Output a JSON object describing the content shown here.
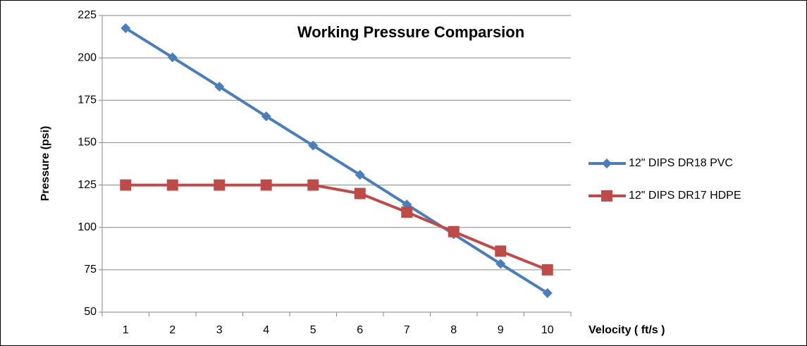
{
  "chart_data": {
    "type": "line",
    "title": "Working Pressure Comparsion",
    "x_label": "Velocity ( ft/s )",
    "y_label": "Pressure (psi)",
    "categories": [
      "1",
      "2",
      "3",
      "4",
      "5",
      "6",
      "7",
      "8",
      "9",
      "10"
    ],
    "series": [
      {
        "name": "12\" DIPS DR18 PVC",
        "color": "#4a7ebb",
        "marker": "diamond",
        "values": [
          217.5,
          200.3,
          183,
          165.5,
          148.3,
          131,
          113.5,
          96,
          78.5,
          61.3
        ]
      },
      {
        "name": "12\" DIPS DR17 HDPE",
        "color": "#be4b48",
        "marker": "square",
        "values": [
          125,
          125,
          125,
          125,
          125,
          120,
          109,
          97.5,
          86,
          75
        ]
      }
    ],
    "ylim": [
      50,
      225
    ],
    "yticks": [
      50,
      75,
      100,
      125,
      150,
      175,
      200,
      225
    ],
    "grid": true,
    "legend": "right"
  }
}
